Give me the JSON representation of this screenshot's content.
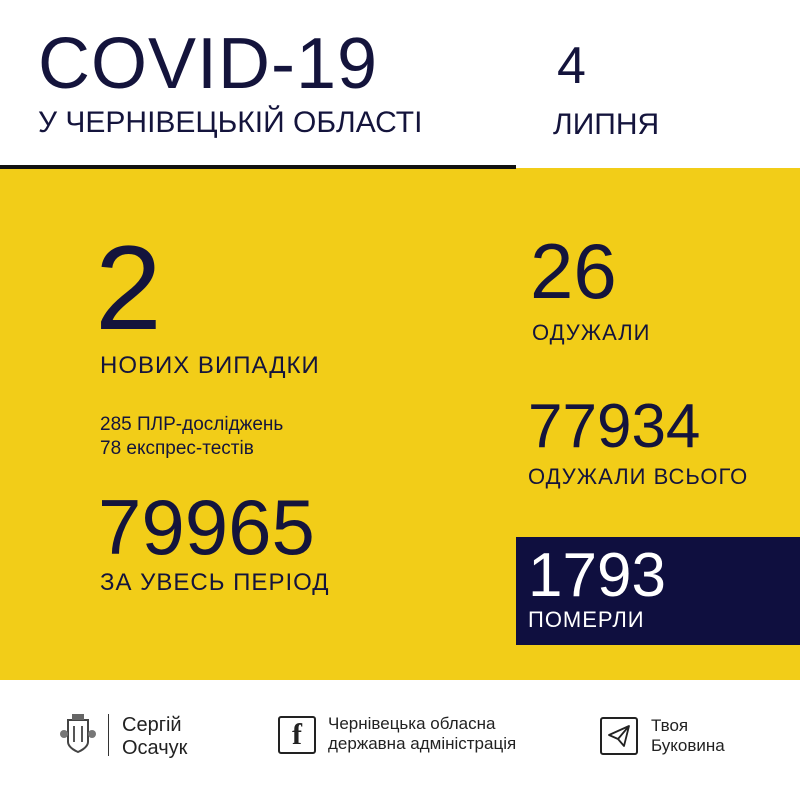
{
  "header": {
    "title": "COVID-19",
    "subtitle": "У ЧЕРНІВЕЦЬКІЙ ОБЛАСТІ",
    "day": "4",
    "month": "ЛИПНЯ"
  },
  "stats": {
    "new_cases": "2",
    "new_cases_label": "НОВИХ ВИПАДКИ",
    "pcr": "285 ПЛР-досліджень",
    "express": "78 експрес-тестів",
    "total": "79965",
    "total_label": "ЗА УВЕСЬ ПЕРІОД",
    "recovered": "26",
    "recovered_label": "ОДУЖАЛИ",
    "recovered_total": "77934",
    "recovered_total_label": "ОДУЖАЛИ ВСЬОГО",
    "deaths": "1793",
    "deaths_label": "ПОМЕРЛИ"
  },
  "footer": {
    "person_line1": "Сергій",
    "person_line2": "Осачук",
    "fb_line1": "Чернівецька обласна",
    "fb_line2": "державна адміністрація",
    "tg_line1": "Твоя",
    "tg_line2": "Буковина"
  },
  "colors": {
    "yellow": "#f2cd18",
    "navy": "#0f0f3f"
  },
  "icons": [
    "coat-of-arms-icon",
    "facebook-icon",
    "telegram-icon"
  ]
}
